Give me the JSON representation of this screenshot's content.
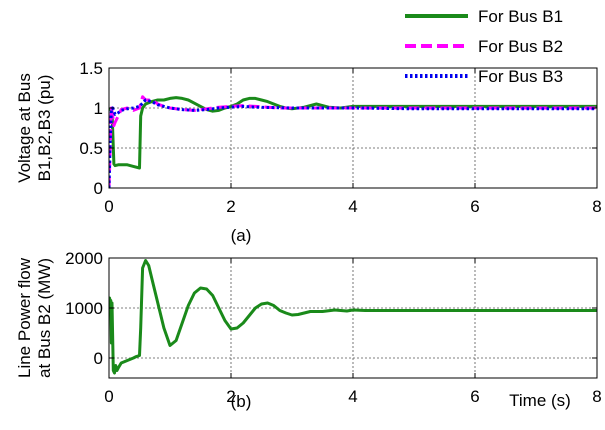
{
  "chart_data": [
    {
      "type": "line",
      "panel_label": "(a)",
      "ylabel_line1": "Voltage at Bus",
      "ylabel_line2": "B1,B2,B3 (pu)",
      "xlim": [
        0,
        8
      ],
      "ylim": [
        0,
        1.5
      ],
      "x_ticks": [
        0,
        2,
        4,
        6,
        8
      ],
      "y_ticks": [
        0,
        0.5,
        1,
        1.5
      ],
      "x_tick_labels": [
        "0",
        "2",
        "4",
        "6",
        "8"
      ],
      "y_tick_labels": [
        "0",
        "0.5",
        "1",
        "1.5"
      ],
      "grid": true,
      "legend_position": "top-right",
      "series": [
        {
          "name": "For Bus B1",
          "color": "#1a8a1a",
          "style": "solid",
          "x": [
            0,
            0.01,
            0.03,
            0.05,
            0.08,
            0.1,
            0.15,
            0.2,
            0.3,
            0.4,
            0.5,
            0.52,
            0.55,
            0.6,
            0.7,
            0.8,
            0.9,
            1.0,
            1.1,
            1.2,
            1.3,
            1.4,
            1.5,
            1.6,
            1.7,
            1.8,
            1.9,
            2.0,
            2.1,
            2.2,
            2.3,
            2.4,
            2.5,
            2.6,
            2.7,
            2.8,
            2.9,
            3.0,
            3.2,
            3.4,
            3.6,
            3.8,
            4.0,
            5.0,
            6.0,
            7.0,
            8.0
          ],
          "y": [
            1.0,
            0.99,
            0.98,
            0.96,
            0.3,
            0.28,
            0.29,
            0.29,
            0.29,
            0.27,
            0.25,
            0.9,
            1.0,
            1.05,
            1.08,
            1.1,
            1.1,
            1.12,
            1.13,
            1.12,
            1.1,
            1.06,
            1.02,
            0.98,
            0.96,
            0.97,
            1.0,
            1.02,
            1.05,
            1.1,
            1.12,
            1.12,
            1.1,
            1.08,
            1.05,
            1.02,
            1.0,
            0.99,
            1.01,
            1.05,
            1.01,
            1.0,
            1.02,
            1.02,
            1.02,
            1.02,
            1.02
          ]
        },
        {
          "name": "For Bus B2",
          "color": "#ff00ff",
          "style": "dashed",
          "x": [
            0,
            0.02,
            0.04,
            0.06,
            0.08,
            0.1,
            0.15,
            0.2,
            0.3,
            0.4,
            0.5,
            0.55,
            0.6,
            0.7,
            0.8,
            0.9,
            1.0,
            1.2,
            1.4,
            1.6,
            1.8,
            2.0,
            2.2,
            2.4,
            2.6,
            2.8,
            3.0,
            4.0,
            5.0,
            6.0,
            7.0,
            8.0
          ],
          "y": [
            0.0,
            0.5,
            1.0,
            0.9,
            0.78,
            0.82,
            0.9,
            0.98,
            1.0,
            0.97,
            1.0,
            1.14,
            1.1,
            1.1,
            1.05,
            1.02,
            1.0,
            0.98,
            0.97,
            0.99,
            1.01,
            1.02,
            1.03,
            1.02,
            1.01,
            1.0,
            1.0,
            1.0,
            1.0,
            1.0,
            1.0,
            1.0
          ]
        },
        {
          "name": "For Bus B3",
          "color": "#0000ee",
          "style": "dotted",
          "x": [
            0,
            0.02,
            0.04,
            0.06,
            0.08,
            0.1,
            0.15,
            0.2,
            0.3,
            0.4,
            0.5,
            0.6,
            0.7,
            0.8,
            0.9,
            1.0,
            1.2,
            1.4,
            1.6,
            1.8,
            2.0,
            2.2,
            2.4,
            3.0,
            4.0,
            5.0,
            6.0,
            7.0,
            8.0
          ],
          "y": [
            0.0,
            0.6,
            0.98,
            1.0,
            0.96,
            0.92,
            0.94,
            0.97,
            0.99,
            1.0,
            1.02,
            1.1,
            1.08,
            1.04,
            1.02,
            1.0,
            0.98,
            0.97,
            0.98,
            1.0,
            1.01,
            1.02,
            1.01,
            1.0,
            1.0,
            0.99,
            0.99,
            0.99,
            0.99
          ]
        }
      ]
    },
    {
      "type": "line",
      "panel_label": "(b)",
      "ylabel_line1": "Line Power flow",
      "ylabel_line2": "at Bus B2 (MW)",
      "xlabel": "Time (s)",
      "xlim": [
        0,
        8
      ],
      "ylim": [
        -400,
        2000
      ],
      "x_ticks": [
        0,
        2,
        4,
        6,
        8
      ],
      "y_ticks": [
        0,
        1000,
        2000
      ],
      "x_tick_labels": [
        "0",
        "2",
        "4",
        "6",
        "8"
      ],
      "y_tick_labels": [
        "0",
        "1000",
        "2000"
      ],
      "grid": true,
      "series": [
        {
          "color": "#1a8a1a",
          "style": "solid",
          "x": [
            0,
            0.01,
            0.02,
            0.03,
            0.04,
            0.05,
            0.07,
            0.09,
            0.11,
            0.13,
            0.15,
            0.2,
            0.3,
            0.4,
            0.45,
            0.5,
            0.52,
            0.55,
            0.6,
            0.65,
            0.7,
            0.8,
            0.9,
            1.0,
            1.1,
            1.2,
            1.3,
            1.4,
            1.5,
            1.6,
            1.7,
            1.8,
            1.9,
            2.0,
            2.1,
            2.2,
            2.3,
            2.4,
            2.5,
            2.6,
            2.7,
            2.8,
            2.9,
            3.0,
            3.1,
            3.2,
            3.3,
            3.5,
            3.7,
            3.9,
            4.0,
            4.2,
            4.5,
            5.0,
            6.0,
            7.0,
            8.0
          ],
          "y": [
            900,
            1200,
            1100,
            1150,
            300,
            1100,
            -250,
            -300,
            -150,
            -250,
            -200,
            -100,
            -50,
            0,
            30,
            50,
            600,
            1800,
            1950,
            1850,
            1600,
            1100,
            600,
            250,
            350,
            700,
            1050,
            1300,
            1400,
            1380,
            1250,
            1000,
            750,
            580,
            600,
            700,
            850,
            1000,
            1080,
            1100,
            1050,
            950,
            900,
            860,
            870,
            900,
            930,
            930,
            960,
            940,
            960,
            950,
            950,
            950,
            950,
            950,
            950
          ]
        }
      ]
    }
  ]
}
